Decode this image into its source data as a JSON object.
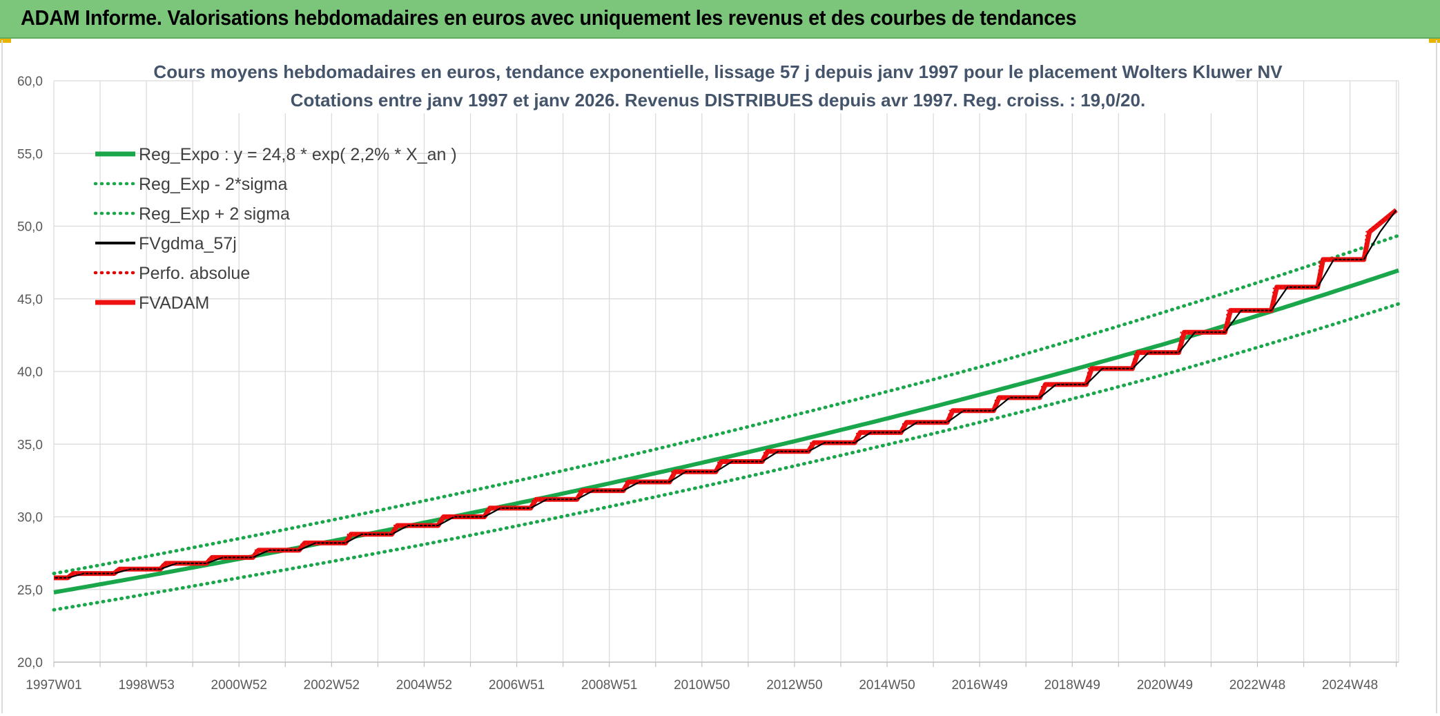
{
  "header": {
    "title": "ADAM Informe. Valorisations hebdomadaires en euros avec uniquement les revenus et des courbes de tendances"
  },
  "colors": {
    "header_bg": "#7cc67b",
    "trend": "#1aa64a",
    "fv_gdma": "#000000",
    "perfo": "#e00000",
    "fvadam": "#ee1111",
    "grid": "#d9d9d9"
  },
  "chart_data": {
    "type": "line",
    "title_line1": "Cours moyens hebdomadaires en euros, tendance exponentielle, lissage 57 j depuis janv 1997 pour le placement Wolters Kluwer NV",
    "title_line2": "Cotations entre janv 1997 et janv 2026. Revenus DISTRIBUES depuis avr 1997. Reg. croiss. : 19,0/20.",
    "ylim": [
      20,
      60
    ],
    "yticks": [
      "60,0",
      "55,0",
      "50,0",
      "45,0",
      "40,0",
      "35,0",
      "30,0",
      "25,0",
      "20,0"
    ],
    "ytick_values": [
      60,
      55,
      50,
      45,
      40,
      35,
      30,
      25,
      20
    ],
    "xlim": [
      1997.0,
      2026.05
    ],
    "xticks": [
      "1997W01",
      "1998W53",
      "2000W52",
      "2002W52",
      "2004W52",
      "2006W51",
      "2008W51",
      "2010W50",
      "2012W50",
      "2014W50",
      "2016W49",
      "2018W49",
      "2020W49",
      "2022W48",
      "2024W48"
    ],
    "xtick_years": [
      1997.0,
      1999.0,
      2001.0,
      2003.0,
      2005.0,
      2007.0,
      2009.0,
      2011.0,
      2013.0,
      2015.0,
      2017.0,
      2019.0,
      2021.0,
      2023.0,
      2025.0
    ],
    "grid": true,
    "legend_position": "top-left",
    "legend": [
      {
        "label": "Reg_Expo : y = 24,8 * exp( 2,2% *  X_an )",
        "style": "solid-thick",
        "color": "#1aa64a"
      },
      {
        "label": "Reg_Exp - 2*sigma",
        "style": "dotted",
        "color": "#1aa64a"
      },
      {
        "label": "Reg_Exp + 2 sigma",
        "style": "dotted",
        "color": "#1aa64a"
      },
      {
        "label": "FVgdma_57j",
        "style": "solid",
        "color": "#000000"
      },
      {
        "label": "Perfo. absolue",
        "style": "dotted",
        "color": "#e00000"
      },
      {
        "label": "FVADAM",
        "style": "solid-thick",
        "color": "#ee1111"
      }
    ],
    "series": [
      {
        "name": "Reg_Expo : y = 24,8 * exp( 2,2% *  X_an )",
        "x": [
          1997,
          2001,
          2005,
          2009,
          2013,
          2017,
          2021,
          2026
        ],
        "values": [
          24.8,
          27.1,
          29.6,
          32.3,
          35.2,
          38.4,
          41.9,
          46.9
        ]
      },
      {
        "name": "Reg_Exp - 2*sigma",
        "x": [
          1997,
          2001,
          2005,
          2009,
          2013,
          2017,
          2021,
          2026
        ],
        "values": [
          23.6,
          25.8,
          28.1,
          30.7,
          33.5,
          36.5,
          39.8,
          44.6
        ]
      },
      {
        "name": "Reg_Exp + 2 sigma",
        "x": [
          1997,
          2001,
          2005,
          2009,
          2013,
          2017,
          2021,
          2026
        ],
        "values": [
          26.1,
          28.5,
          31.1,
          33.9,
          37.0,
          40.3,
          44.1,
          49.3
        ]
      },
      {
        "name": "FVADAM",
        "x": [
          1997.0,
          1997.3,
          1998.3,
          1999.3,
          2000.3,
          2001.3,
          2002.3,
          2003.3,
          2004.3,
          2005.3,
          2006.3,
          2007.3,
          2008.3,
          2009.3,
          2010.3,
          2011.3,
          2012.3,
          2013.3,
          2014.3,
          2015.3,
          2016.3,
          2017.3,
          2018.3,
          2019.3,
          2020.3,
          2021.3,
          2022.3,
          2023.3,
          2024.3,
          2025.3,
          2026.0
        ],
        "values": [
          25.8,
          26.1,
          26.4,
          26.8,
          27.2,
          27.7,
          28.2,
          28.8,
          29.4,
          30.0,
          30.6,
          31.2,
          31.8,
          32.4,
          33.1,
          33.8,
          34.5,
          35.1,
          35.8,
          36.5,
          37.3,
          38.2,
          39.1,
          40.2,
          41.3,
          42.7,
          44.2,
          45.8,
          47.7,
          49.6,
          51.1
        ]
      }
    ]
  }
}
